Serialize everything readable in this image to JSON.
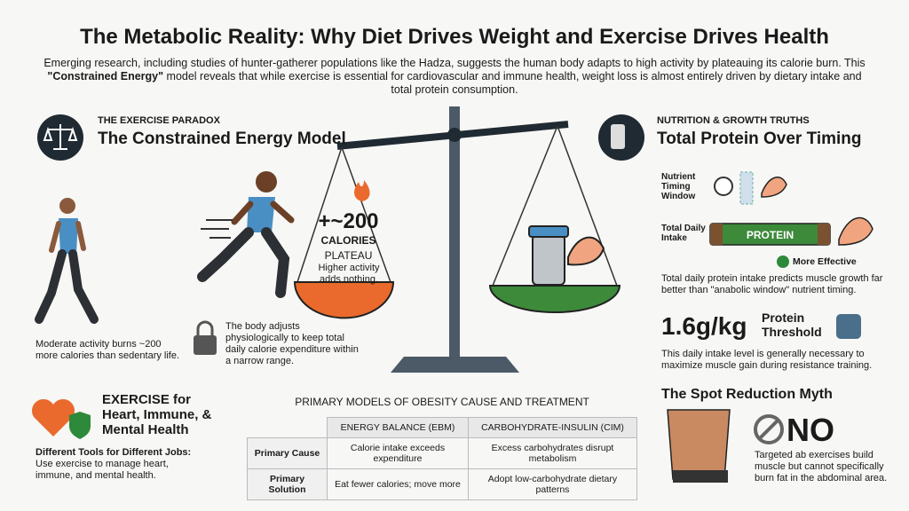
{
  "header": {
    "title": "The Metabolic Reality: Why Diet Drives Weight and Exercise Drives Health",
    "intro": {
      "before": "Emerging research, including studies of hunter-gatherer populations like the Hadza, suggests the human body adapts to high activity by plateauing its calorie burn. This ",
      "bold": "\"Constrained Energy\"",
      "after": " model reveals that while exercise is essential for cardiovascular and immune health, weight loss is almost entirely driven by dietary intake and total protein consumption."
    }
  },
  "exercise_paradox": {
    "kicker": "THE EXERCISE PARADOX",
    "heading": "The Constrained Energy Model",
    "walker_caption": "Moderate activity burns ~200 more calories than sedentary life.",
    "lock_caption": "The body adjusts physiologically to keep total daily calorie expenditure within a narrow range."
  },
  "scale": {
    "amount": "+~200",
    "unit": "CALORIES",
    "status": "PLATEAU",
    "note": "Higher activity adds nothing."
  },
  "nutrition": {
    "kicker": "NUTRITION & GROWTH TRUTHS",
    "heading": "Total Protein Over Timing",
    "timing_label": "Nutrient Timing Window",
    "intake_label": "Total Daily Intake",
    "bar_label": "PROTEIN",
    "effective": "More Effective",
    "summary": "Total daily protein intake predicts muscle growth far better than \"anabolic window\" nutrient timing.",
    "threshold_value": "1.6g/kg",
    "threshold_label": "Protein Threshold",
    "threshold_note": "This daily intake level is generally necessary to maximize muscle gain during resistance training."
  },
  "spot_reduction": {
    "heading": "The Spot Reduction Myth",
    "verdict": "NO",
    "note": "Targeted ab exercises build muscle but cannot specifically burn fat in the abdominal area."
  },
  "exercise_health": {
    "heading": "EXERCISE for Heart, Immune, & Mental Health",
    "subheading": "Different Tools for Different Jobs:",
    "note": "Use exercise to manage heart, immune, and mental health."
  },
  "table": {
    "title": "PRIMARY MODELS OF OBESITY CAUSE AND TREATMENT",
    "columns": [
      "ENERGY BALANCE (EBM)",
      "CARBOHYDRATE-INSULIN (CIM)"
    ],
    "rows": [
      [
        "Primary Cause",
        "Calorie intake exceeds expenditure",
        "Excess carbohydrates disrupt metabolism"
      ],
      [
        "Primary Solution",
        "Eat fewer calories; move more",
        "Adopt low-carbohydrate dietary patterns"
      ]
    ]
  }
}
